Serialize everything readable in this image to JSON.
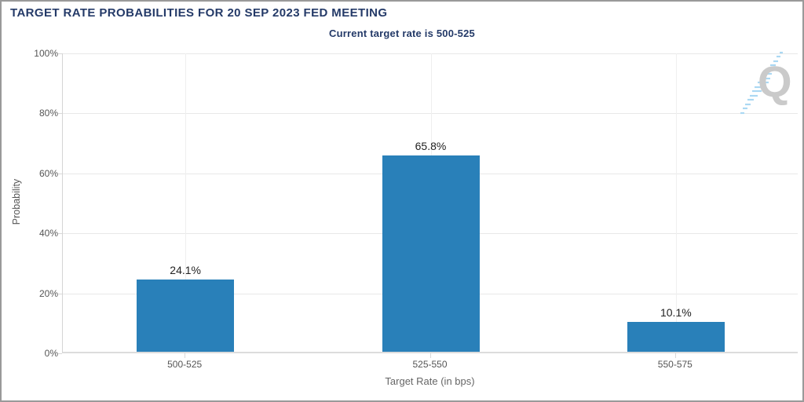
{
  "chart_data": {
    "type": "bar",
    "title": "TARGET RATE PROBABILITIES FOR 20 SEP 2023 FED MEETING",
    "subtitle": "Current target rate is 500-525",
    "xlabel": "Target Rate (in bps)",
    "ylabel": "Probability",
    "categories": [
      "500-525",
      "525-550",
      "550-575"
    ],
    "values": [
      24.1,
      65.8,
      10.1
    ],
    "value_labels": [
      "24.1%",
      "65.8%",
      "10.1%"
    ],
    "ylim": [
      0,
      100
    ],
    "yticks": [
      0,
      20,
      40,
      60,
      80,
      100
    ],
    "ytick_labels": [
      "0%",
      "20%",
      "40%",
      "60%",
      "80%",
      "100%"
    ],
    "legend": "none",
    "grid": "horizontal 20% lines plus faint vertical category lines"
  },
  "watermark": {
    "letter": "Q"
  },
  "colors": {
    "title_navy": "#243a68",
    "bar_blue": "#2980b9",
    "grid_light": "#e8e8e8",
    "axis_gray": "#d4d4d4",
    "tick_text": "#555555",
    "value_text": "#222222",
    "frame_border": "#9a9a9a",
    "logo_gray": "#cacaca",
    "logo_blue": "#abd8f3"
  }
}
